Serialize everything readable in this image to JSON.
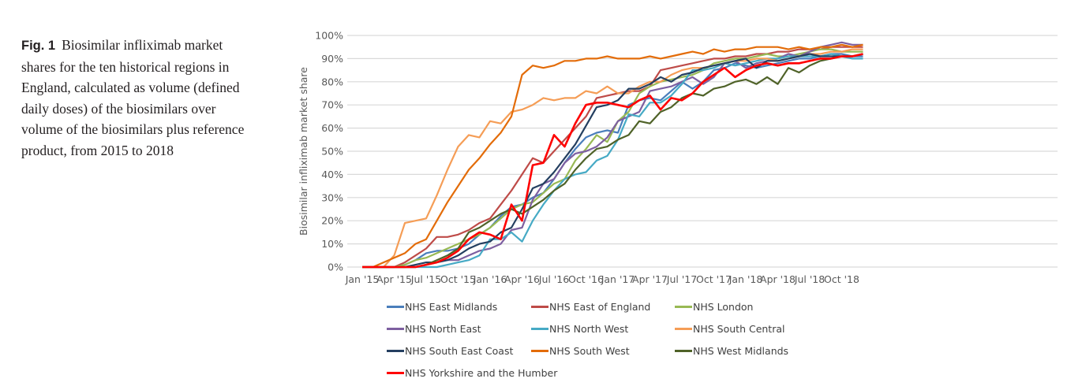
{
  "caption": {
    "label": "Fig. 1",
    "text": "Biosimilar infliximab market shares for the ten historical regions in England, calculated as volume (defined daily doses) of the biosimilars over volume of the biosimilars plus reference product, from 2015 to 2018"
  },
  "chart_data": {
    "type": "line",
    "title": "",
    "xlabel": "",
    "ylabel": "Biosimilar infliximab market share",
    "ylim": [
      0,
      100
    ],
    "yticks": [
      "0%",
      "10%",
      "20%",
      "30%",
      "40%",
      "50%",
      "60%",
      "70%",
      "80%",
      "90%",
      "100%"
    ],
    "xticks": [
      "Jan '15",
      "Apr '15",
      "Jul '15",
      "Oct '15",
      "Jan '16",
      "Apr '16",
      "Jul '16",
      "Oct '16",
      "Jan '17",
      "Apr '17",
      "Jul '17",
      "Oct '17",
      "Jan '18",
      "Apr '18",
      "Jul '18",
      "Oct '18"
    ],
    "x_unit": "month index from Jan 2015 (0 = Jan '15, 47 = Dec '18)",
    "grid": true,
    "legend_position": "bottom",
    "series": [
      {
        "name": "NHS East Midlands",
        "color": "#4a7ebb",
        "values": [
          0,
          0,
          0,
          0,
          1,
          3,
          6,
          7,
          7,
          8,
          10,
          14,
          17,
          22,
          26,
          27,
          30,
          32,
          38,
          45,
          51,
          56,
          58,
          59,
          58,
          70,
          72,
          73,
          72,
          76,
          80,
          77,
          80,
          85,
          86,
          88,
          87,
          86,
          87,
          88,
          89,
          90,
          90,
          91,
          92,
          92,
          91,
          91
        ]
      },
      {
        "name": "NHS East of England",
        "color": "#be4b48",
        "values": [
          0,
          0,
          0,
          0,
          2,
          5,
          8,
          13,
          13,
          14,
          16,
          19,
          21,
          27,
          33,
          40,
          47,
          45,
          50,
          55,
          60,
          65,
          73,
          74,
          75,
          76,
          76,
          78,
          85,
          86,
          87,
          88,
          89,
          90,
          90,
          91,
          91,
          92,
          92,
          93,
          93,
          94,
          94,
          94,
          95,
          95,
          95,
          95
        ]
      },
      {
        "name": "NHS London",
        "color": "#98b954",
        "values": [
          0,
          0,
          0,
          0,
          1,
          3,
          4,
          6,
          8,
          10,
          12,
          14,
          17,
          21,
          25,
          27,
          28,
          32,
          36,
          38,
          46,
          51,
          57,
          54,
          63,
          67,
          75,
          78,
          80,
          81,
          82,
          83,
          85,
          88,
          89,
          90,
          90,
          91,
          92,
          91,
          91,
          92,
          93,
          94,
          94,
          93,
          93,
          93
        ]
      },
      {
        "name": "NHS North East",
        "color": "#7d5fa0",
        "values": [
          0,
          0,
          0,
          0,
          0,
          0,
          1,
          2,
          3,
          3,
          5,
          7,
          8,
          10,
          16,
          17,
          29,
          36,
          38,
          45,
          49,
          50,
          52,
          56,
          63,
          65,
          67,
          76,
          77,
          78,
          80,
          82,
          79,
          82,
          88,
          89,
          86,
          88,
          89,
          90,
          92,
          91,
          93,
          95,
          96,
          97,
          96,
          96
        ]
      },
      {
        "name": "NHS North West",
        "color": "#46aac5",
        "values": [
          0,
          0,
          0,
          0,
          0,
          0,
          0,
          0,
          1,
          2,
          3,
          5,
          12,
          12,
          15,
          11,
          20,
          27,
          33,
          38,
          40,
          41,
          46,
          48,
          55,
          66,
          65,
          71,
          71,
          74,
          79,
          85,
          85,
          86,
          88,
          87,
          88,
          89,
          90,
          90,
          91,
          91,
          91,
          91,
          92,
          91,
          90,
          90
        ]
      },
      {
        "name": "NHS South Central",
        "color": "#f59d56",
        "values": [
          0,
          0,
          0,
          5,
          19,
          20,
          21,
          31,
          42,
          52,
          57,
          56,
          63,
          62,
          67,
          68,
          70,
          73,
          72,
          73,
          73,
          76,
          75,
          78,
          75,
          75,
          78,
          80,
          80,
          83,
          85,
          86,
          86,
          87,
          88,
          89,
          89,
          90,
          90,
          89,
          90,
          91,
          92,
          92,
          93,
          93,
          94,
          94
        ]
      },
      {
        "name": "NHS South East Coast",
        "color": "#243f60",
        "values": [
          0,
          0,
          0,
          0,
          0,
          1,
          2,
          2,
          3,
          5,
          8,
          10,
          11,
          15,
          17,
          25,
          34,
          36,
          41,
          47,
          53,
          61,
          69,
          70,
          72,
          77,
          77,
          79,
          82,
          80,
          83,
          84,
          86,
          87,
          88,
          89,
          90,
          86,
          89,
          89,
          90,
          91,
          92,
          91,
          91,
          91,
          91,
          92
        ]
      },
      {
        "name": "NHS South West",
        "color": "#e36c09",
        "values": [
          0,
          0,
          2,
          4,
          6,
          10,
          12,
          20,
          28,
          35,
          42,
          47,
          53,
          58,
          65,
          83,
          87,
          86,
          87,
          89,
          89,
          90,
          90,
          91,
          90,
          90,
          90,
          91,
          90,
          91,
          92,
          93,
          92,
          94,
          93,
          94,
          94,
          95,
          95,
          95,
          94,
          95,
          94,
          95,
          95,
          96,
          95,
          96
        ]
      },
      {
        "name": "NHS West Midlands",
        "color": "#4f6228",
        "values": [
          0,
          0,
          0,
          0,
          0,
          0,
          1,
          3,
          5,
          8,
          15,
          17,
          20,
          23,
          25,
          23,
          26,
          29,
          33,
          36,
          42,
          47,
          51,
          52,
          55,
          57,
          63,
          62,
          67,
          69,
          73,
          75,
          74,
          77,
          78,
          80,
          81,
          79,
          82,
          79,
          86,
          84,
          87,
          89,
          90,
          91,
          91,
          92
        ]
      },
      {
        "name": "NHS Yorkshire and the Humber",
        "color": "#ff0000",
        "values": [
          0,
          0,
          0,
          0,
          0,
          0,
          1,
          2,
          4,
          7,
          12,
          15,
          14,
          12,
          27,
          20,
          44,
          45,
          57,
          52,
          62,
          70,
          71,
          71,
          70,
          69,
          72,
          74,
          68,
          73,
          72,
          75,
          80,
          83,
          86,
          82,
          85,
          87,
          88,
          87,
          88,
          88,
          89,
          90,
          90,
          91,
          91,
          92
        ]
      }
    ]
  }
}
